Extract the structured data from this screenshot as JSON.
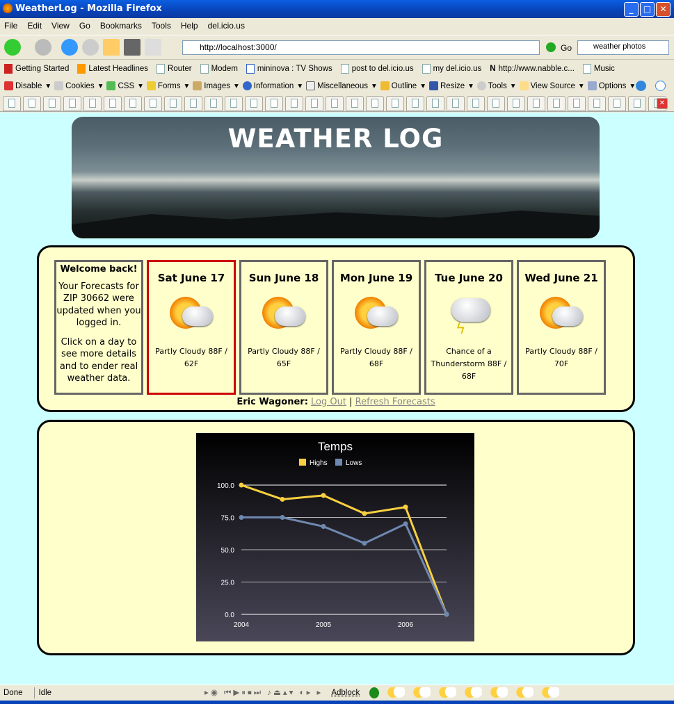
{
  "window": {
    "title": "WeatherLog - Mozilla Firefox"
  },
  "menu": [
    "File",
    "Edit",
    "View",
    "Go",
    "Bookmarks",
    "Tools",
    "Help",
    "del.icio.us"
  ],
  "nav": {
    "url": "http://localhost:3000/",
    "go_label": "Go",
    "search_value": "weather photos"
  },
  "bookmarks": [
    "Getting Started",
    "Latest Headlines",
    "Router",
    "Modem",
    "mininova : TV Shows",
    "post to del.icio.us",
    "my del.icio.us",
    "http://www.nabble.c...",
    "Music"
  ],
  "webdev": [
    "Disable",
    "Cookies",
    "CSS",
    "Forms",
    "Images",
    "Information",
    "Miscellaneous",
    "Outline",
    "Resize",
    "Tools",
    "View Source",
    "Options"
  ],
  "tab_count": 33,
  "page": {
    "title": "WEATHER LOG",
    "welcome": {
      "heading": "Welcome back!",
      "text1": "Your Forecasts for ZIP 30662 were updated when you logged in.",
      "text2": "Click on a day to see more details and to ender real weather data."
    },
    "days": [
      {
        "date": "Sat June 17",
        "forecast": "Partly Cloudy 88F / 62F",
        "icon": "partly-cloudy",
        "selected": true
      },
      {
        "date": "Sun June 18",
        "forecast": "Partly Cloudy 88F / 65F",
        "icon": "partly-cloudy"
      },
      {
        "date": "Mon June 19",
        "forecast": "Partly Cloudy 88F / 68F",
        "icon": "partly-cloudy"
      },
      {
        "date": "Tue June 20",
        "forecast": "Chance of a Thunderstorm 88F / 68F",
        "icon": "thunderstorm"
      },
      {
        "date": "Wed June 21",
        "forecast": "Partly Cloudy 88F / 70F",
        "icon": "partly-cloudy"
      }
    ],
    "user": {
      "name": "Eric Wagoner:",
      "logout": "Log Out",
      "separator": "|",
      "refresh": "Refresh Forecasts"
    }
  },
  "chart_data": {
    "type": "line",
    "title": "Temps",
    "x": [
      2004,
      2004.5,
      2005,
      2005.5,
      2006,
      2006.5
    ],
    "xticks": [
      "2004",
      "2005",
      "2006"
    ],
    "yticks": [
      "0.0",
      "25.0",
      "50.0",
      "75.0",
      "100.0"
    ],
    "ylim": [
      0,
      100
    ],
    "grid": true,
    "legend": "top",
    "series": [
      {
        "name": "Highs",
        "color": "#f8d040",
        "values": [
          100,
          89,
          92,
          78,
          83,
          0
        ]
      },
      {
        "name": "Lows",
        "color": "#6f88b0",
        "values": [
          75,
          75,
          68,
          55,
          70,
          0
        ]
      }
    ]
  },
  "status": {
    "left": "Done",
    "middle": "Idle",
    "adblock": "Adblock"
  }
}
